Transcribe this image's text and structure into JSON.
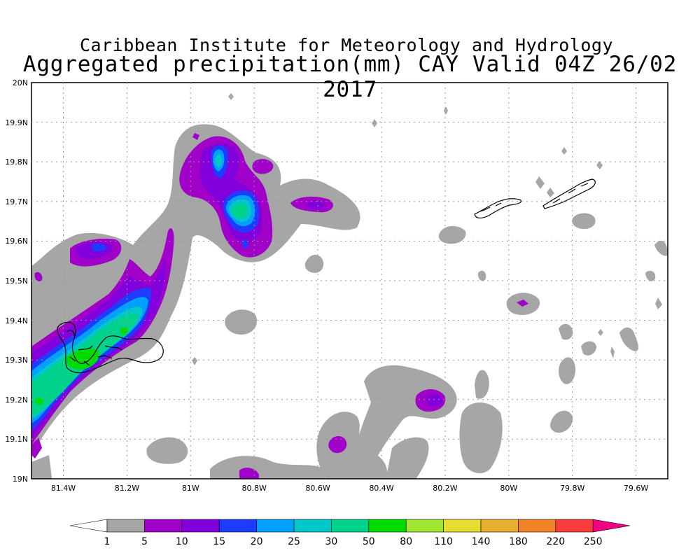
{
  "title_line1": "Caribbean Institute for Meteorology and Hydrology",
  "title_line2": "Aggregated precipitation(mm) CAY Valid 04Z 26/02 2017",
  "axes": {
    "lat_labels": [
      "20N",
      "19.9N",
      "19.8N",
      "19.7N",
      "19.6N",
      "19.5N",
      "19.4N",
      "19.3N",
      "19.2N",
      "19.1N",
      "19N"
    ],
    "lon_labels": [
      "81.4W",
      "81.2W",
      "81W",
      "80.8W",
      "80.6W",
      "80.4W",
      "80.2W",
      "80W",
      "79.8W",
      "79.6W"
    ],
    "lat_range": [
      19.0,
      20.0
    ],
    "lon_range": [
      -81.5,
      -79.5
    ],
    "grid": "dotted"
  },
  "colors": {
    "c1": "#a6a6a6",
    "c5": "#a000c8",
    "c10": "#8200dc",
    "c15": "#1e3cff",
    "c20": "#00a0ff",
    "c25": "#00c8c8",
    "c30": "#00d28c",
    "c50": "#00dc00",
    "c80": "#a0e632",
    "c110": "#e6dc32",
    "c140": "#e6af2d",
    "c180": "#f08228",
    "c220": "#fa3c3c",
    "c250": "#f00082"
  },
  "legend": {
    "labels": [
      "1",
      "5",
      "10",
      "15",
      "20",
      "25",
      "30",
      "50",
      "80",
      "110",
      "140",
      "180",
      "220",
      "250"
    ]
  }
}
